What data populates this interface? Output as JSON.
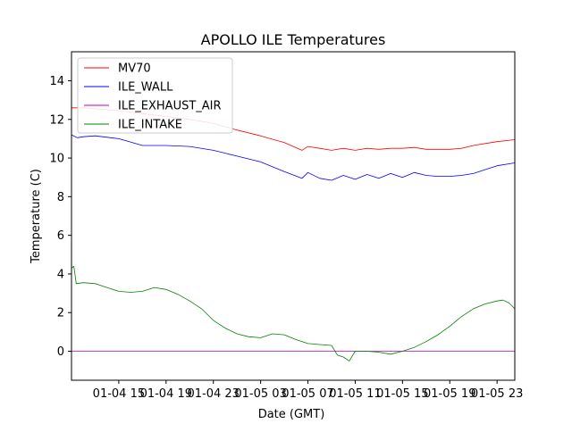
{
  "chart_data": {
    "type": "line",
    "title": "APOLLO ILE Temperatures",
    "xlabel": "Date (GMT)",
    "ylabel": "Temperature (C)",
    "xlim": [
      0,
      37.5
    ],
    "ylim": [
      -1.5,
      15.5
    ],
    "x_units": "hours since 01-04 11:00 GMT",
    "x_ticks": [
      {
        "x": 4,
        "label": "01-04 15"
      },
      {
        "x": 8,
        "label": "01-04 19"
      },
      {
        "x": 12,
        "label": "01-04 23"
      },
      {
        "x": 16,
        "label": "01-05 03"
      },
      {
        "x": 20,
        "label": "01-05 07"
      },
      {
        "x": 24,
        "label": "01-05 11"
      },
      {
        "x": 28,
        "label": "01-05 15"
      },
      {
        "x": 32,
        "label": "01-05 19"
      },
      {
        "x": 36,
        "label": "01-05 23"
      }
    ],
    "y_ticks": [
      0,
      2,
      4,
      6,
      8,
      10,
      12,
      14
    ],
    "grid": false,
    "legend_position": "top-left",
    "series": [
      {
        "name": "MV70",
        "color": "#ff0000",
        "x": [
          0,
          1,
          2,
          4,
          6,
          8,
          10,
          12,
          14,
          16,
          18,
          19.5,
          20,
          21,
          22,
          23,
          24,
          25,
          26,
          27,
          28,
          29,
          30,
          31,
          32,
          33,
          34,
          35,
          36,
          37.5
        ],
        "y": [
          12.6,
          12.6,
          12.55,
          12.45,
          12.3,
          12.15,
          12.0,
          11.8,
          11.45,
          11.15,
          10.8,
          10.4,
          10.6,
          10.5,
          10.4,
          10.5,
          10.4,
          10.5,
          10.45,
          10.5,
          10.5,
          10.55,
          10.45,
          10.45,
          10.45,
          10.5,
          10.65,
          10.75,
          10.85,
          10.95
        ]
      },
      {
        "name": "ILE_WALL",
        "color": "#0000ff",
        "x": [
          0,
          0.5,
          1,
          2,
          4,
          6,
          8,
          10,
          12,
          14,
          16,
          18,
          19.5,
          20,
          21,
          22,
          23,
          24,
          25,
          26,
          27,
          28,
          29,
          30,
          31,
          32,
          33,
          34,
          35,
          36,
          37.5
        ],
        "y": [
          11.2,
          11.05,
          11.1,
          11.15,
          11.0,
          10.65,
          10.65,
          10.6,
          10.4,
          10.1,
          9.8,
          9.3,
          8.95,
          9.25,
          8.95,
          8.85,
          9.1,
          8.9,
          9.15,
          8.95,
          9.2,
          9.0,
          9.25,
          9.1,
          9.05,
          9.05,
          9.1,
          9.2,
          9.4,
          9.6,
          9.75
        ]
      },
      {
        "name": "ILE_EXHAUST_AIR",
        "color": "#bf00bf",
        "x": [
          0,
          37.5
        ],
        "y": [
          0.0,
          0.0
        ]
      },
      {
        "name": "ILE_INTAKE",
        "color": "#008000",
        "x": [
          0,
          0.2,
          0.4,
          1,
          2,
          3,
          4,
          5,
          6,
          7,
          8,
          9,
          10,
          11,
          12,
          13,
          14,
          15,
          16,
          17,
          18,
          19,
          20,
          21,
          22,
          22.5,
          23,
          23.5,
          24,
          25,
          26,
          27,
          28,
          29,
          30,
          31,
          32,
          33,
          34,
          35,
          36,
          36.5,
          37,
          37.5
        ],
        "y": [
          4.3,
          4.4,
          3.5,
          3.55,
          3.5,
          3.3,
          3.1,
          3.05,
          3.1,
          3.3,
          3.2,
          2.95,
          2.6,
          2.2,
          1.6,
          1.2,
          0.9,
          0.75,
          0.7,
          0.9,
          0.85,
          0.6,
          0.4,
          0.35,
          0.3,
          -0.2,
          -0.3,
          -0.5,
          0.0,
          0.0,
          -0.05,
          -0.15,
          0.0,
          0.2,
          0.5,
          0.85,
          1.3,
          1.8,
          2.2,
          2.45,
          2.6,
          2.65,
          2.5,
          2.2
        ]
      }
    ]
  }
}
